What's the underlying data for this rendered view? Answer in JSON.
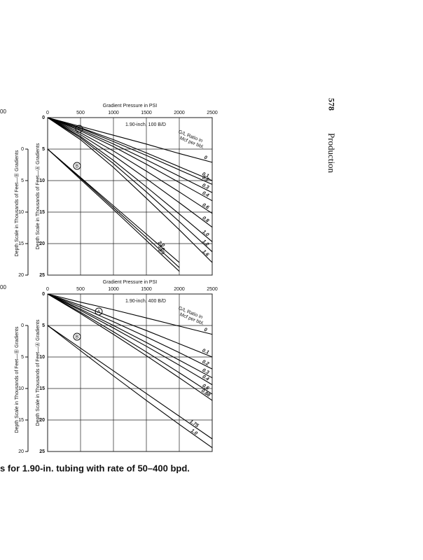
{
  "page_number": "578",
  "running_head": "Production",
  "edge_labels": [
    "00",
    "00"
  ],
  "caption": "s for 1.90-in. tubing with rate of 50–400 bpd.",
  "chart_data": [
    {
      "type": "line",
      "title": "Gradient Pressure in PSI",
      "subtitle": "1.90-inch, 100 B/D",
      "y_label": "Depth Scale in Thousands of Feet—Ⓐ Gradients",
      "y2_label": "Depth Scale in Thousands of Feet—Ⓑ Gradients",
      "legend_title": [
        "G/L Ratio in",
        "Mcf per bbl."
      ],
      "annotations": [
        "A",
        "B"
      ],
      "xlim": [
        0,
        2500
      ],
      "xticks": [
        0,
        500,
        1000,
        1500,
        2000,
        2500
      ],
      "ylim": [
        0,
        25
      ],
      "yticks": [
        0,
        5,
        10,
        15,
        20,
        25
      ],
      "y_inverted": true,
      "y2lim": [
        -5,
        20
      ],
      "y2ticks": [
        0,
        5,
        10,
        15,
        20
      ],
      "grid": true,
      "x": [
        0,
        500,
        1000,
        1500,
        2000,
        2500
      ],
      "series": [
        {
          "name": "0",
          "color": "#000000",
          "values": [
            0,
            1.4,
            2.8,
            4.2,
            5.7,
            7.1
          ]
        },
        {
          "name": "0.1",
          "color": "#000000",
          "values": [
            0,
            1.6,
            3.5,
            5.6,
            7.8,
            10
          ]
        },
        {
          "name": "0.2",
          "color": "#000000",
          "values": [
            0,
            1.7,
            3.8,
            6,
            8.3,
            10.6
          ]
        },
        {
          "name": "0.3",
          "color": "#000000",
          "values": [
            0,
            1.9,
            4.2,
            6.7,
            9.3,
            11.9
          ]
        },
        {
          "name": "0.4",
          "color": "#000000",
          "values": [
            0,
            2.1,
            4.6,
            7.4,
            10.3,
            13.2
          ]
        },
        {
          "name": "0.6",
          "color": "#000000",
          "values": [
            0,
            2.4,
            5.3,
            8.5,
            11.8,
            15.2
          ]
        },
        {
          "name": "0.8",
          "color": "#000000",
          "values": [
            0,
            2.7,
            6,
            9.7,
            13.5,
            17.4
          ]
        },
        {
          "name": "1.0",
          "color": "#000000",
          "values": [
            0,
            3,
            6.8,
            11,
            15.3,
            19.7
          ]
        },
        {
          "name": "1.2",
          "color": "#000000",
          "values": [
            0,
            3.2,
            7.3,
            11.8,
            16.5,
            21.3
          ]
        },
        {
          "name": "1.6",
          "color": "#000000",
          "values": [
            0,
            3.5,
            7.9,
            12.8,
            17.8,
            23
          ]
        },
        {
          "name": "3.5",
          "color": "#000000",
          "values": [
            5,
            9.8,
            14.6,
            19.5,
            24.4,
            null
          ]
        },
        {
          "name": "3.0",
          "color": "#000000",
          "values": [
            5,
            9.6,
            14.3,
            19,
            23.8,
            null
          ]
        },
        {
          "name": "2.0",
          "color": "#000000",
          "values": [
            5,
            9.5,
            14,
            18.5,
            23,
            null
          ]
        }
      ]
    },
    {
      "type": "line",
      "title": "Gradient Pressure in PSI",
      "subtitle": "1.90-inch, 400 B/D",
      "y_label": "Depth Scale in Thousands of Feet—Ⓐ Gradients",
      "y2_label": "Depth Scale in Thousands of Feet—Ⓑ Gradients",
      "legend_title": [
        "G/L Ratio in",
        "Mcf per bbl."
      ],
      "annotations": [
        "A",
        "B"
      ],
      "xlim": [
        0,
        2500
      ],
      "xticks": [
        0,
        500,
        1000,
        1500,
        2000,
        2500
      ],
      "ylim": [
        0,
        25
      ],
      "yticks": [
        0,
        5,
        10,
        15,
        20,
        25
      ],
      "y_inverted": true,
      "y2lim": [
        -5,
        20
      ],
      "y2ticks": [
        0,
        5,
        10,
        15,
        20
      ],
      "grid": true,
      "x": [
        0,
        500,
        1000,
        1500,
        2000,
        2500
      ],
      "series": [
        {
          "name": "0",
          "color": "#000000",
          "values": [
            0,
            1.3,
            2.5,
            3.8,
            5.1,
            6.4
          ]
        },
        {
          "name": "0.1",
          "color": "#000000",
          "values": [
            0,
            1.8,
            3.8,
            5.8,
            7.9,
            10
          ]
        },
        {
          "name": "0.2",
          "color": "#000000",
          "values": [
            0,
            2.1,
            4.4,
            6.8,
            9.3,
            11.9
          ]
        },
        {
          "name": "0.3",
          "color": "#000000",
          "values": [
            0,
            2.4,
            5,
            7.7,
            10.5,
            13.3
          ]
        },
        {
          "name": "0.4",
          "color": "#000000",
          "values": [
            0,
            2.6,
            5.4,
            8.3,
            11.3,
            14.4
          ]
        },
        {
          "name": "0.6",
          "color": "#000000",
          "values": [
            0,
            2.9,
            6,
            9.2,
            12.5,
            15.9
          ]
        },
        {
          "name": "0.88",
          "color": "#000000",
          "values": [
            0,
            3.1,
            6.4,
            9.8,
            13.3,
            16.9
          ]
        },
        {
          "name": "1.75",
          "color": "#000000",
          "values": [
            5,
            8.6,
            12.2,
            15.8,
            19.4,
            23
          ]
        },
        {
          "name": "1.0",
          "color": "#000000",
          "values": [
            5,
            9,
            13,
            16.9,
            20.7,
            24.4
          ]
        }
      ]
    }
  ]
}
